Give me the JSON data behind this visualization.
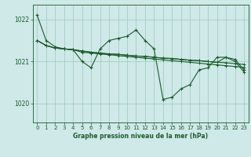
{
  "background_color": "#cfe8e8",
  "grid_color": "#99ccbb",
  "line_color": "#1a5c2a",
  "title": "Graphe pression niveau de la mer (hPa)",
  "xlim": [
    -0.5,
    23.5
  ],
  "ylim": [
    1019.55,
    1022.35
  ],
  "yticks": [
    1020,
    1021,
    1022
  ],
  "xticks": [
    0,
    1,
    2,
    3,
    4,
    5,
    6,
    7,
    8,
    9,
    10,
    11,
    12,
    13,
    14,
    15,
    16,
    17,
    18,
    19,
    20,
    21,
    22,
    23
  ],
  "series1": [
    1022.1,
    1021.5,
    1021.35,
    1021.3,
    1021.28,
    1021.0,
    1020.85,
    1021.3,
    1021.5,
    1021.55,
    1021.6,
    1021.75,
    1021.5,
    1021.3,
    1020.1,
    1020.15,
    1020.35,
    1020.45,
    1020.8,
    1020.85,
    1021.1,
    1021.1,
    1021.05,
    1020.8
  ],
  "series2": [
    1021.5,
    1021.38,
    1021.32,
    1021.3,
    1021.28,
    1021.25,
    1021.22,
    1021.2,
    1021.18,
    1021.17,
    1021.15,
    1021.13,
    1021.12,
    1021.1,
    1021.08,
    1021.07,
    1021.05,
    1021.03,
    1021.02,
    1021.0,
    1020.98,
    1020.97,
    1020.95,
    1020.93
  ],
  "series3": [
    1021.5,
    1021.38,
    1021.32,
    1021.3,
    1021.28,
    1021.25,
    1021.22,
    1021.2,
    1021.18,
    1021.17,
    1021.15,
    1021.13,
    1021.12,
    1021.1,
    1021.08,
    1021.07,
    1021.05,
    1021.03,
    1021.02,
    1021.0,
    1020.98,
    1021.1,
    1021.0,
    1020.75
  ],
  "series4": [
    1021.5,
    1021.38,
    1021.32,
    1021.3,
    1021.28,
    1021.22,
    1021.2,
    1021.18,
    1021.16,
    1021.14,
    1021.12,
    1021.1,
    1021.08,
    1021.06,
    1021.04,
    1021.02,
    1021.0,
    1020.98,
    1020.96,
    1020.94,
    1020.92,
    1020.9,
    1020.88,
    1020.86
  ]
}
